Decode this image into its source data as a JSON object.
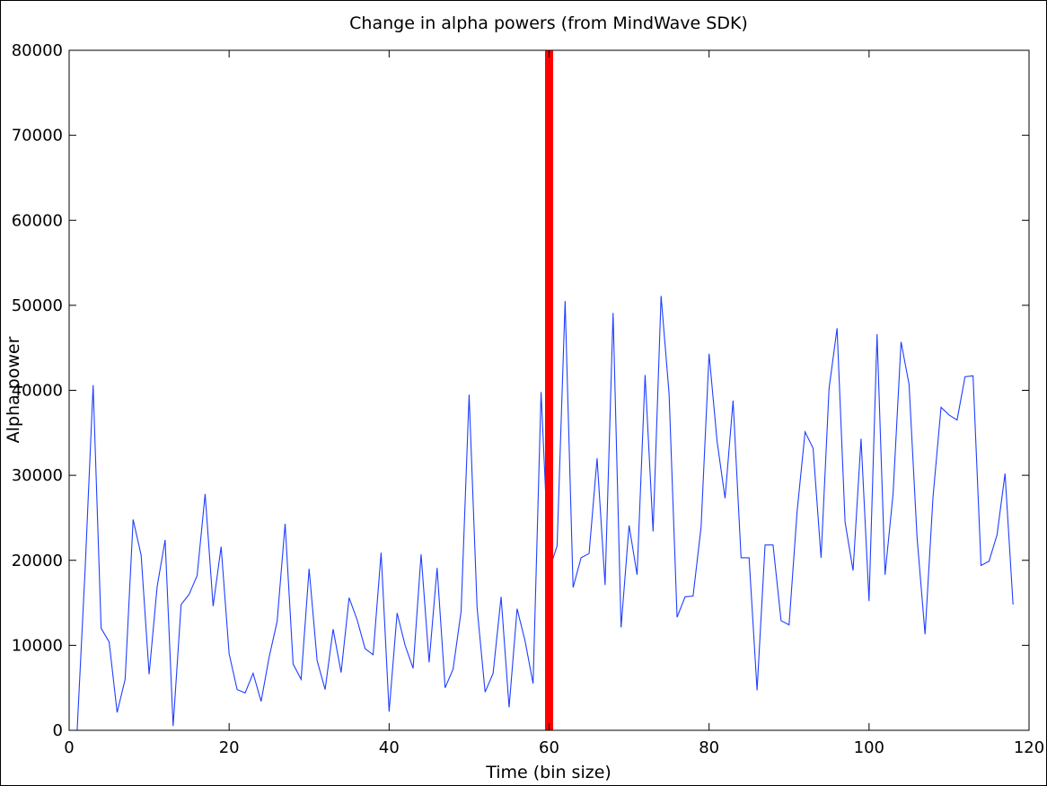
{
  "chart_data": {
    "type": "line",
    "title": "Change in alpha powers (from MindWave SDK)",
    "xlabel": "Time (bin size)",
    "ylabel": "Alpha power",
    "xlim": [
      0,
      120
    ],
    "ylim": [
      0,
      80000
    ],
    "xticks": [
      0,
      20,
      40,
      60,
      80,
      100,
      120
    ],
    "yticks": [
      0,
      10000,
      20000,
      30000,
      40000,
      50000,
      60000,
      70000,
      80000
    ],
    "grid": false,
    "line_color": "#1f3fff",
    "marker_line": {
      "x": 60,
      "color": "#ff0000"
    },
    "series": [
      {
        "x": [
          1,
          2,
          3,
          4,
          5,
          6,
          7,
          8,
          9,
          10,
          11,
          12,
          13,
          14,
          15,
          16,
          17,
          18,
          19,
          20,
          21,
          22,
          23,
          24,
          25,
          26,
          27,
          28,
          29,
          30,
          31,
          32,
          33,
          34,
          35,
          36,
          37,
          38,
          39,
          40,
          41,
          42,
          43,
          44,
          45,
          46,
          47,
          48,
          49,
          50,
          51,
          52,
          53,
          54,
          55,
          56,
          57,
          58,
          59,
          60,
          61,
          62,
          63,
          64,
          65,
          66,
          67,
          68,
          69,
          70,
          71,
          72,
          73,
          74,
          75,
          76,
          77,
          78,
          79,
          80,
          81,
          82,
          83,
          84,
          85,
          86,
          87,
          88,
          89,
          90,
          91,
          92,
          93,
          94,
          95,
          96,
          97,
          98,
          99,
          100,
          101,
          102,
          103,
          104,
          105,
          106,
          107,
          108,
          109,
          110,
          111,
          112,
          113,
          114,
          115,
          116,
          117,
          118
        ],
        "values": [
          0,
          19000,
          40600,
          12000,
          10400,
          2100,
          6000,
          24800,
          20600,
          6600,
          16900,
          22400,
          500,
          14800,
          16000,
          18200,
          27800,
          14600,
          21600,
          9000,
          4800,
          4400,
          6700,
          3400,
          8600,
          12800,
          24300,
          7800,
          6000,
          19000,
          8200,
          4800,
          11900,
          6800,
          15600,
          13000,
          9600,
          8900,
          20900,
          2200,
          13800,
          10000,
          7300,
          20700,
          8000,
          19100,
          5000,
          7200,
          14000,
          39500,
          14400,
          4500,
          6700,
          15700,
          2700,
          14300,
          10500,
          5500,
          39800,
          18800,
          21700,
          50500,
          16800,
          20300,
          20800,
          32000,
          17100,
          49100,
          12100,
          24100,
          18300,
          41800,
          23400,
          51100,
          39600,
          13300,
          15700,
          15800,
          23900,
          44300,
          34000,
          27300,
          38800,
          20300,
          20300,
          4700,
          21800,
          21800,
          12900,
          12400,
          25700,
          35100,
          33200,
          20300,
          40200,
          47300,
          24500,
          18800,
          34300,
          15200,
          46600,
          18300,
          27800,
          45700,
          40700,
          22700,
          11300,
          27500,
          38000,
          37100,
          36500,
          41600,
          41700,
          19400,
          19900,
          23000,
          30200,
          14800
        ]
      }
    ]
  }
}
